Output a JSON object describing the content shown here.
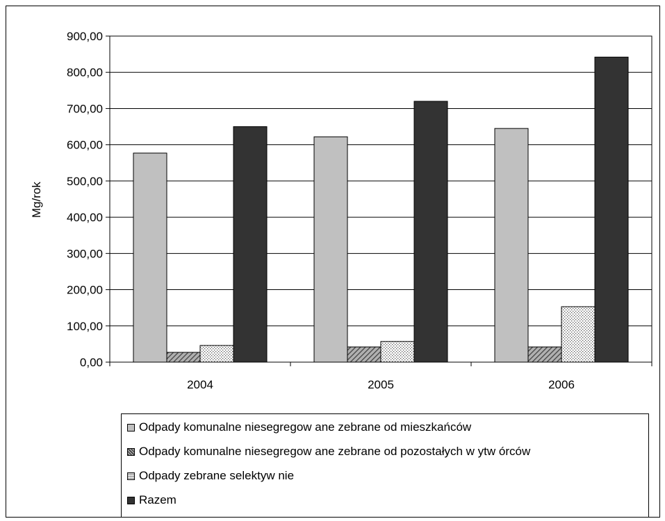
{
  "chart_data": {
    "type": "bar",
    "categories": [
      "2004",
      "2005",
      "2006"
    ],
    "series": [
      {
        "name": "Odpady komunalne niesegregow ane zebrane od mieszkańców",
        "values": [
          577,
          622,
          645
        ],
        "color": "#c0c0c0",
        "pattern": "solid"
      },
      {
        "name": "Odpady komunalne niesegregow ane zebrane od pozostałych w ytw órców",
        "values": [
          27,
          42,
          42
        ],
        "color": "#808080",
        "pattern": "diagonal-hatch"
      },
      {
        "name": "Odpady zebrane selektyw nie",
        "values": [
          46,
          57,
          153
        ],
        "color": "#ffffff",
        "pattern": "dots"
      },
      {
        "name": "Razem",
        "values": [
          650,
          720,
          842
        ],
        "color": "#333333",
        "pattern": "solid"
      }
    ],
    "ylabel": "Mg/rok",
    "xlabel": "",
    "ylim": [
      0,
      900
    ],
    "yticks": [
      "0,00",
      "100,00",
      "200,00",
      "300,00",
      "400,00",
      "500,00",
      "600,00",
      "700,00",
      "800,00",
      "900,00"
    ],
    "grid": true,
    "legend_position": "bottom"
  }
}
